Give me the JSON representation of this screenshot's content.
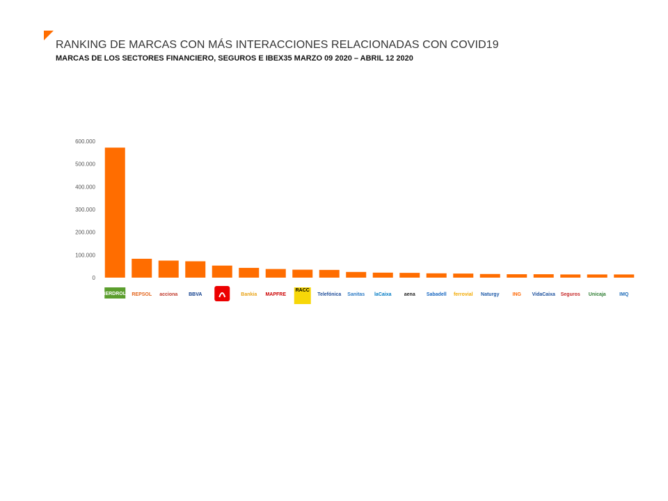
{
  "header": {
    "title": "RANKING DE MARCAS CON MÁS INTERACCIONES RELACIONADAS CON COVID19",
    "subtitle": "MARCAS DE LOS SECTORES FINANCIERO, SEGUROS E IBEX35 MARZO 09 2020 – ABRIL 12 2020"
  },
  "chart_data": {
    "type": "bar",
    "ylim": [
      0,
      600000
    ],
    "yticks": [
      "0",
      "100.000",
      "200.000",
      "300.000",
      "400.000",
      "500.000",
      "600.000"
    ],
    "grid": false,
    "bar_color": "#ff6d00",
    "categories": [
      "IBERDROLA",
      "REPSOL",
      "acciona",
      "BBVA",
      "Santander",
      "Bankia",
      "MAPFRE",
      "RACC",
      "Telefónica",
      "Sanitas",
      "laCaixa",
      "aena",
      "Sabadell",
      "ferrovial",
      "Naturgy",
      "ING",
      "VidaCaixa",
      "Seguros",
      "Unicaja",
      "IMQ"
    ],
    "values": [
      572000,
      83000,
      75000,
      72000,
      53000,
      43000,
      38000,
      35000,
      34000,
      25000,
      22000,
      21000,
      19000,
      18000,
      16000,
      15000,
      15000,
      14000,
      14000,
      14000
    ],
    "logo_colors": [
      "#5b9e2d",
      "#e3641b",
      "#c0392b",
      "#0d3c8c",
      "#ec0000",
      "#e8a317",
      "#cc0000",
      "#f7d708",
      "#1f4e9a",
      "#2a79c4",
      "#007bc4",
      "#222222",
      "#1565c0",
      "#f2a900",
      "#1e5aa8",
      "#ff6600",
      "#1a4f9c",
      "#c62828",
      "#2e7d32",
      "#1e6bb8"
    ]
  }
}
